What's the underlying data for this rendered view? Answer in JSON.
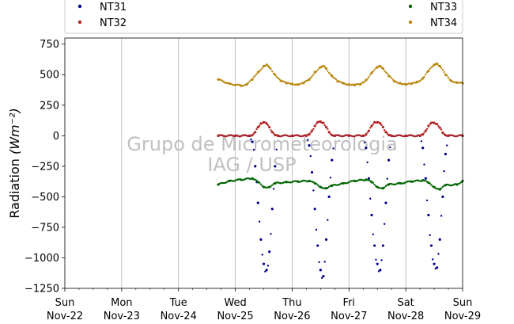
{
  "chart_data": {
    "type": "scatter",
    "title": "",
    "xlabel": "",
    "ylabel": "Radiation",
    "ylabel_unit": "(Wm^-2)",
    "ylim": [
      -1250,
      800
    ],
    "yticks": [
      -1250,
      -1000,
      -750,
      -500,
      -250,
      0,
      250,
      500,
      750
    ],
    "ytick_labels": [
      "−1250",
      "−1000",
      "−750",
      "−500",
      "−250",
      "0",
      "250",
      "500",
      "750"
    ],
    "xlim": [
      "2020-11-22 00:00",
      "2020-11-29 00:00"
    ],
    "xticks": [
      {
        "day": "Sun",
        "date": "Nov-22"
      },
      {
        "day": "Mon",
        "date": "Nov-23"
      },
      {
        "day": "Tue",
        "date": "Nov-24"
      },
      {
        "day": "Wed",
        "date": "Nov-25"
      },
      {
        "day": "Thu",
        "date": "Nov-26"
      },
      {
        "day": "Fri",
        "date": "Nov-27"
      },
      {
        "day": "Sat",
        "date": "Nov-28"
      },
      {
        "day": "Sun",
        "date": "Nov-29"
      }
    ],
    "grid": "vertical",
    "legend": "top",
    "watermark": [
      "Grupo de Micrometeorologia",
      "IAG / USP"
    ],
    "series": [
      {
        "name": "NT31",
        "color": "#00008b",
        "x_days": [
          2.7,
          3.0,
          3.25,
          3.3,
          3.35,
          3.4,
          3.45,
          3.5,
          3.55,
          3.6,
          3.65,
          3.7,
          3.75,
          4.0,
          4.25,
          4.3,
          4.35,
          4.4,
          4.45,
          4.5,
          4.55,
          4.6,
          4.65,
          4.7,
          4.75,
          5.0,
          5.25,
          5.3,
          5.35,
          5.4,
          5.45,
          5.5,
          5.55,
          5.6,
          5.65,
          5.7,
          5.75,
          6.0,
          6.25,
          6.3,
          6.35,
          6.4,
          6.45,
          6.5,
          6.55,
          6.6,
          6.65,
          6.7,
          6.75,
          7.0
        ],
        "y": [
          0,
          0,
          0,
          -50,
          -250,
          -550,
          -850,
          -1050,
          -1100,
          -950,
          -600,
          -250,
          0,
          0,
          0,
          -80,
          -300,
          -600,
          -900,
          -1100,
          -1150,
          -850,
          -500,
          -200,
          0,
          0,
          0,
          -100,
          -350,
          -650,
          -900,
          -1050,
          -1100,
          -900,
          -550,
          -200,
          0,
          0,
          0,
          -100,
          -350,
          -650,
          -900,
          -1050,
          -1080,
          -850,
          -500,
          -150,
          0,
          0
        ]
      },
      {
        "name": "NT32",
        "color": "#b22222",
        "x_days": [
          2.7,
          3.0,
          3.25,
          3.3,
          3.35,
          3.4,
          3.45,
          3.5,
          3.55,
          3.6,
          3.65,
          3.7,
          3.75,
          4.0,
          4.25,
          4.3,
          4.35,
          4.4,
          4.45,
          4.5,
          4.55,
          4.6,
          4.65,
          4.7,
          4.75,
          5.0,
          5.25,
          5.3,
          5.35,
          5.4,
          5.45,
          5.5,
          5.55,
          5.6,
          5.65,
          5.7,
          5.75,
          6.0,
          6.25,
          6.3,
          6.35,
          6.4,
          6.45,
          6.5,
          6.55,
          6.6,
          6.65,
          6.7,
          6.75,
          7.0
        ],
        "y": [
          0,
          0,
          0,
          5,
          30,
          70,
          100,
          110,
          100,
          70,
          30,
          5,
          0,
          0,
          0,
          10,
          40,
          80,
          110,
          115,
          105,
          70,
          30,
          5,
          0,
          0,
          0,
          10,
          40,
          80,
          110,
          110,
          100,
          70,
          30,
          5,
          0,
          0,
          0,
          10,
          40,
          80,
          105,
          105,
          95,
          65,
          25,
          5,
          0,
          0
        ]
      },
      {
        "name": "NT33",
        "color": "#006400",
        "x_days": [
          2.7,
          2.9,
          3.1,
          3.3,
          3.4,
          3.5,
          3.6,
          3.7,
          3.9,
          4.1,
          4.3,
          4.4,
          4.5,
          4.6,
          4.7,
          4.9,
          5.1,
          5.3,
          5.4,
          5.5,
          5.6,
          5.7,
          5.9,
          6.1,
          6.3,
          6.4,
          6.5,
          6.6,
          6.7,
          6.9,
          7.0
        ],
        "y": [
          -400,
          -370,
          -360,
          -350,
          -380,
          -420,
          -420,
          -390,
          -380,
          -375,
          -370,
          -390,
          -420,
          -430,
          -410,
          -390,
          -370,
          -360,
          -380,
          -420,
          -430,
          -400,
          -390,
          -375,
          -365,
          -385,
          -420,
          -440,
          -405,
          -400,
          -370
        ]
      },
      {
        "name": "NT34",
        "color": "#b8860b",
        "x_days": [
          2.7,
          2.9,
          3.1,
          3.2,
          3.3,
          3.4,
          3.5,
          3.55,
          3.6,
          3.7,
          3.8,
          3.9,
          4.0,
          4.1,
          4.2,
          4.3,
          4.4,
          4.5,
          4.55,
          4.6,
          4.7,
          4.8,
          4.9,
          5.0,
          5.1,
          5.2,
          5.3,
          5.4,
          5.5,
          5.55,
          5.6,
          5.7,
          5.8,
          5.9,
          6.0,
          6.1,
          6.2,
          6.3,
          6.4,
          6.5,
          6.55,
          6.6,
          6.7,
          6.8,
          6.9,
          7.0
        ],
        "y": [
          460,
          425,
          410,
          420,
          460,
          520,
          570,
          580,
          560,
          500,
          450,
          430,
          425,
          420,
          430,
          460,
          520,
          560,
          570,
          550,
          490,
          445,
          430,
          420,
          415,
          420,
          455,
          515,
          560,
          570,
          550,
          490,
          445,
          430,
          420,
          425,
          440,
          470,
          530,
          580,
          590,
          570,
          500,
          450,
          435,
          430
        ]
      }
    ]
  }
}
